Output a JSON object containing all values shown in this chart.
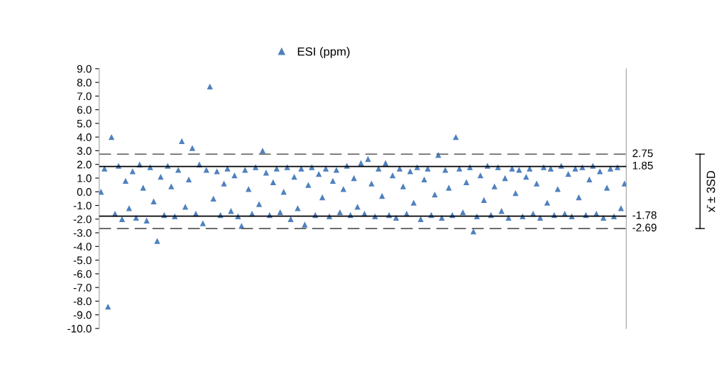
{
  "chart_data": {
    "type": "scatter",
    "categories": [
      null,
      null,
      null,
      null,
      null,
      null,
      null,
      null,
      null,
      null,
      null,
      null,
      null,
      null,
      null,
      null,
      null,
      null,
      null,
      null,
      null,
      null,
      null,
      null,
      null,
      null,
      null,
      null,
      null,
      null,
      null,
      null,
      null,
      null,
      null,
      null,
      null,
      null,
      null,
      null,
      null,
      null,
      null,
      null,
      null,
      null,
      null,
      null,
      null,
      null,
      null,
      null,
      null,
      null,
      null,
      null,
      null,
      null,
      null,
      null,
      null,
      null,
      null,
      null,
      null,
      null,
      null,
      null,
      null,
      null,
      null,
      null,
      null,
      null,
      null,
      null,
      null,
      null,
      null,
      null,
      null,
      null,
      null,
      null,
      null,
      null,
      null,
      null,
      null,
      null,
      null,
      null,
      null,
      null,
      null,
      null,
      null,
      null,
      null,
      null,
      null,
      null,
      null,
      null,
      null,
      null,
      null,
      null,
      null,
      null,
      null,
      null,
      null,
      null,
      null,
      null,
      null,
      null,
      null,
      null,
      null,
      null,
      null,
      null,
      null,
      null,
      null,
      null,
      null,
      null,
      null,
      null,
      null,
      null,
      null,
      null,
      null,
      null,
      null,
      null,
      null,
      null,
      null,
      null,
      null,
      null,
      null,
      null,
      null,
      null
    ],
    "series": [
      {
        "name": "ESI (ppm)",
        "color": "#4f81bd",
        "values": [
          0.0,
          1.7,
          -8.4,
          4.0,
          -1.6,
          1.9,
          -2.0,
          0.8,
          -1.2,
          1.5,
          -1.9,
          2.0,
          0.3,
          -2.1,
          1.8,
          -0.7,
          -3.6,
          1.1,
          -1.7,
          1.9,
          0.4,
          -1.8,
          1.6,
          3.7,
          -1.1,
          0.9,
          3.2,
          -1.6,
          2.0,
          -2.3,
          1.6,
          7.7,
          -0.5,
          1.5,
          -1.7,
          0.6,
          1.7,
          -1.4,
          1.2,
          -1.8,
          -2.5,
          1.6,
          0.2,
          -1.6,
          1.8,
          -0.9,
          3.0,
          1.4,
          -1.7,
          0.7,
          1.7,
          -1.5,
          0.0,
          1.8,
          -2.0,
          1.1,
          -1.2,
          1.7,
          -2.4,
          0.5,
          1.8,
          -1.7,
          1.3,
          -0.4,
          1.7,
          -1.8,
          0.8,
          1.6,
          -1.5,
          0.2,
          1.9,
          -1.7,
          1.0,
          -1.1,
          2.1,
          -1.6,
          2.4,
          0.6,
          -1.8,
          1.7,
          -0.3,
          2.1,
          -1.7,
          1.2,
          -1.9,
          1.7,
          0.4,
          -1.6,
          1.5,
          -0.8,
          1.8,
          -2.0,
          0.9,
          1.7,
          -1.7,
          -0.2,
          2.7,
          -1.9,
          1.6,
          0.3,
          -1.7,
          4.0,
          1.7,
          -1.5,
          0.7,
          1.8,
          -2.9,
          -1.8,
          1.2,
          -0.6,
          1.9,
          -1.7,
          0.4,
          1.8,
          -1.4,
          1.0,
          -1.9,
          1.7,
          -0.1,
          1.6,
          -1.8,
          1.1,
          1.7,
          -1.6,
          0.6,
          -1.9,
          1.8,
          -0.8,
          1.7,
          -1.7,
          0.2,
          1.9,
          -1.6,
          1.3,
          -1.8,
          1.7,
          -0.4,
          1.8,
          -1.7,
          0.9,
          1.9,
          -1.6,
          1.5,
          -1.9,
          0.3,
          1.7,
          -1.8,
          1.8,
          -1.2,
          0.6
        ]
      }
    ],
    "ylim": [
      -10,
      9
    ],
    "yticks": [
      {
        "value": 9,
        "label": "9.0"
      },
      {
        "value": 8,
        "label": "8.0"
      },
      {
        "value": 7,
        "label": "7.0"
      },
      {
        "value": 6,
        "label": "6.0"
      },
      {
        "value": 5,
        "label": "5.0"
      },
      {
        "value": 4,
        "label": "4.0"
      },
      {
        "value": 3,
        "label": "3.0"
      },
      {
        "value": 2,
        "label": "2.0"
      },
      {
        "value": 1,
        "label": "1.0"
      },
      {
        "value": 0,
        "label": "0.0"
      },
      {
        "value": -1,
        "label": "-1.0"
      },
      {
        "value": -2,
        "label": "-2.0"
      },
      {
        "value": -3,
        "label": "-3.0"
      },
      {
        "value": -4,
        "label": "-4.0"
      },
      {
        "value": -5,
        "label": "-5.0"
      },
      {
        "value": -6,
        "label": "-6.0"
      },
      {
        "value": -7,
        "label": "-7.0"
      },
      {
        "value": -8,
        "label": "-8.0"
      },
      {
        "value": -9,
        "label": "-9.0"
      },
      {
        "value": -10,
        "label": "-10.0"
      }
    ],
    "ref_lines": [
      {
        "axis": "y",
        "value": 2.75,
        "label": "2.75",
        "color": "#595959",
        "line_style": "dashed"
      },
      {
        "axis": "y",
        "value": 1.85,
        "label": "1.85",
        "color": "#000000",
        "line_style": "solid"
      },
      {
        "axis": "y",
        "value": -1.78,
        "label": "-1.78",
        "color": "#000000",
        "line_style": "solid"
      },
      {
        "axis": "y",
        "value": -2.69,
        "label": "-2.69",
        "color": "#595959",
        "line_style": "dashed"
      }
    ],
    "annotations": [
      "x̄ ± 3SD"
    ],
    "marker": "triangle",
    "legend": "top",
    "grid": false,
    "tick_labels": "y"
  }
}
